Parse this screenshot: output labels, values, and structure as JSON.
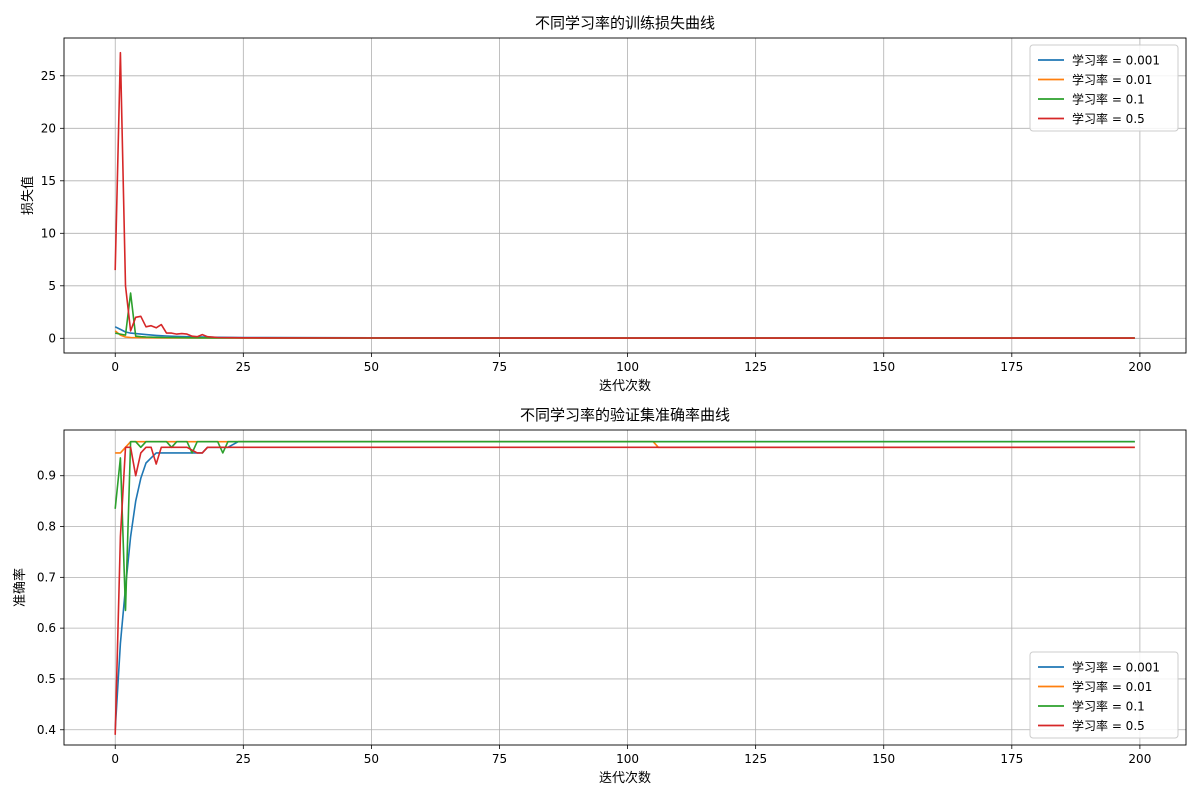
{
  "chart_data": [
    {
      "type": "line",
      "title": "不同学习率的训练损失曲线",
      "xlabel": "迭代次数",
      "ylabel": "损失值",
      "xlim": [
        -10,
        209
      ],
      "ylim": [
        -1.4,
        28.6
      ],
      "xticks": [
        0,
        25,
        50,
        75,
        100,
        125,
        150,
        175,
        200
      ],
      "yticks": [
        0,
        5,
        10,
        15,
        20,
        25
      ],
      "grid": true,
      "legend_position": "upper right",
      "series": [
        {
          "name": "学习率 = 0.001",
          "color": "#1f77b4",
          "x": [
            0,
            1,
            2,
            3,
            4,
            5,
            6,
            8,
            10,
            12,
            15,
            20,
            25,
            30,
            50,
            100,
            150,
            199
          ],
          "y": [
            1.1,
            0.85,
            0.6,
            0.5,
            0.45,
            0.4,
            0.35,
            0.28,
            0.22,
            0.18,
            0.14,
            0.1,
            0.08,
            0.07,
            0.05,
            0.04,
            0.03,
            0.03
          ]
        },
        {
          "name": "学习率 = 0.01",
          "color": "#ff7f0e",
          "x": [
            0,
            1,
            2,
            3,
            5,
            10,
            20,
            50,
            100,
            150,
            199
          ],
          "y": [
            0.7,
            0.3,
            0.12,
            0.08,
            0.06,
            0.04,
            0.03,
            0.02,
            0.02,
            0.02,
            0.02
          ]
        },
        {
          "name": "学习率 = 0.1",
          "color": "#2ca02c",
          "x": [
            0,
            1,
            2,
            3,
            4,
            5,
            6,
            8,
            10,
            12,
            15,
            20,
            30,
            50,
            100,
            150,
            199
          ],
          "y": [
            0.5,
            0.4,
            0.3,
            4.3,
            0.2,
            0.15,
            0.12,
            0.1,
            0.08,
            0.07,
            0.05,
            0.04,
            0.03,
            0.02,
            0.02,
            0.02,
            0.02
          ]
        },
        {
          "name": "学习率 = 0.5",
          "color": "#d62728",
          "x": [
            0,
            1,
            2,
            3,
            4,
            5,
            6,
            7,
            8,
            9,
            10,
            11,
            12,
            13,
            14,
            15,
            16,
            17,
            18,
            20,
            25,
            30,
            50,
            100,
            150,
            199
          ],
          "y": [
            6.5,
            27.2,
            5.0,
            0.7,
            2.0,
            2.1,
            1.1,
            1.2,
            1.0,
            1.3,
            0.5,
            0.5,
            0.4,
            0.45,
            0.4,
            0.2,
            0.15,
            0.35,
            0.15,
            0.08,
            0.05,
            0.04,
            0.03,
            0.02,
            0.02,
            0.02
          ]
        }
      ]
    },
    {
      "type": "line",
      "title": "不同学习率的验证集准确率曲线",
      "xlabel": "迭代次数",
      "ylabel": "准确率",
      "xlim": [
        -10,
        209
      ],
      "ylim": [
        0.37,
        0.99
      ],
      "xticks": [
        0,
        25,
        50,
        75,
        100,
        125,
        150,
        175,
        200
      ],
      "yticks": [
        0.4,
        0.5,
        0.6,
        0.7,
        0.8,
        0.9
      ],
      "grid": true,
      "legend_position": "lower right",
      "series": [
        {
          "name": "学习率 = 0.001",
          "color": "#1f77b4",
          "x": [
            0,
            1,
            2,
            3,
            4,
            5,
            6,
            7,
            8,
            9,
            10,
            15,
            17,
            18,
            20,
            22,
            24,
            25,
            50,
            100,
            150,
            199
          ],
          "y": [
            0.4,
            0.57,
            0.68,
            0.78,
            0.85,
            0.895,
            0.925,
            0.935,
            0.945,
            0.945,
            0.945,
            0.945,
            0.945,
            0.956,
            0.956,
            0.956,
            0.967,
            0.967,
            0.967,
            0.967,
            0.967,
            0.967
          ]
        },
        {
          "name": "学习率 = 0.01",
          "color": "#ff7f0e",
          "x": [
            0,
            1,
            2,
            3,
            4,
            5,
            10,
            20,
            50,
            100,
            105,
            106,
            150,
            199
          ],
          "y": [
            0.945,
            0.945,
            0.956,
            0.967,
            0.967,
            0.967,
            0.967,
            0.967,
            0.967,
            0.967,
            0.967,
            0.956,
            0.956,
            0.956
          ]
        },
        {
          "name": "学习率 = 0.1",
          "color": "#2ca02c",
          "x": [
            0,
            1,
            2,
            3,
            4,
            5,
            6,
            7,
            8,
            10,
            11,
            12,
            14,
            15,
            16,
            17,
            20,
            21,
            22,
            25,
            50,
            100,
            150,
            199
          ],
          "y": [
            0.835,
            0.935,
            0.635,
            0.967,
            0.967,
            0.956,
            0.967,
            0.967,
            0.967,
            0.967,
            0.956,
            0.967,
            0.967,
            0.945,
            0.967,
            0.967,
            0.967,
            0.945,
            0.967,
            0.967,
            0.967,
            0.967,
            0.967,
            0.967
          ]
        },
        {
          "name": "学习率 = 0.5",
          "color": "#d62728",
          "x": [
            0,
            1,
            2,
            3,
            4,
            5,
            6,
            7,
            8,
            9,
            10,
            12,
            14,
            16,
            17,
            18,
            20,
            25,
            50,
            100,
            150,
            199
          ],
          "y": [
            0.39,
            0.78,
            0.956,
            0.956,
            0.9,
            0.945,
            0.956,
            0.956,
            0.923,
            0.956,
            0.956,
            0.956,
            0.956,
            0.945,
            0.945,
            0.956,
            0.956,
            0.956,
            0.956,
            0.956,
            0.956,
            0.956
          ]
        }
      ]
    }
  ]
}
